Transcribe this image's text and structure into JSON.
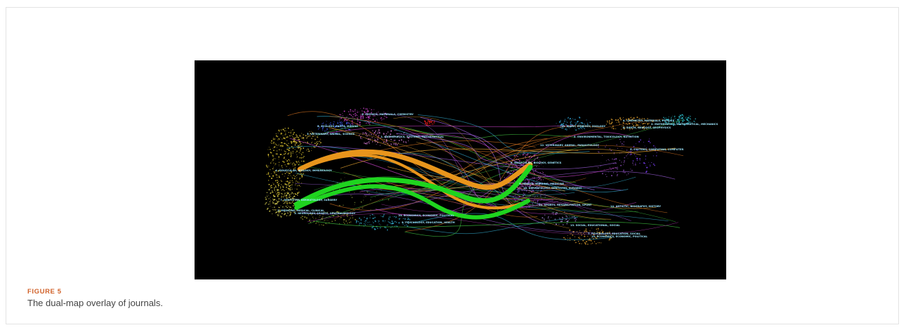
{
  "figure": {
    "label": "FIGURE 5",
    "caption": "The dual-map overlay of journals.",
    "colors": {
      "label": "#d1622a",
      "background": "#000000",
      "main_green": "#22dd22",
      "main_orange": "#f0a020",
      "label_text": "#9fe8ff"
    }
  },
  "citing_labels": [
    "6. PHYSICS, MATERIALS, CHEMISTRY",
    "8. ECOLOGY, EARTH, MARINE",
    "5. VETERINARY, ANIMAL, SCIENCE",
    "1. MATHEMATICS, SYSTEMS, MATHEMATICAL",
    "4. MOLECULAR, BIOLOGY, IMMUNOLOGY",
    "7. DENTISTRY, DERMATOLOGY, SURGERY",
    "2. MEDICINE, MEDICAL, CLINICAL",
    "3. NEUROLOGY, SPORTS, OPHTHALMOLOGY",
    "10. ECONOMICS, ECONOMIC, POLITICAL",
    "9. PSYCHOLOGY, EDUCATION, HEALTH"
  ],
  "cited_labels": [
    "4. CHEMISTRY, MATERIALS, PHYSICS",
    "2. MATHEMATICS, MATHEMATICAL, MECHANICS",
    "10. PLANT, ECOLOGY, ZOOLOGY",
    "6. EARTH, GEOLOGY, GEOPHYSICS",
    "3. ENVIRONMENTAL, TOXICOLOGY, NUTRITION",
    "5. SYSTEMS, COMPUTING, COMPUTER",
    "12. VETERINARY, ANIMAL, PARASITOLOGY",
    "8. MOLECULAR, BIOLOGY, GENETICS",
    "5. HEALTH, NURSING, MEDICINE",
    "16. DERMATOLOGY, DENTISTRY, SURGERY",
    "11. SPORTS, REHABILITATION, SPORT",
    "14. ARTISTIC, BIOGRAPHY, HISTORY",
    "13. SOCIAL, EDUCATIONAL, SOCIAL",
    "7. PSYCHOLOGY, EDUCATION, SOCIAL",
    "15. ECONOMICS, ECONOMIC, POLITICAL"
  ]
}
